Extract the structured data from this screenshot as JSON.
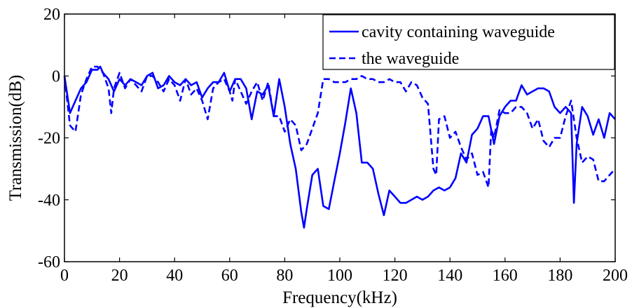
{
  "chart_data": {
    "type": "line",
    "title": "",
    "xlabel": "Frequency(kHz)",
    "ylabel": "Transmission(dB)",
    "xlim": [
      0,
      200
    ],
    "ylim": [
      -60,
      20
    ],
    "xticks": [
      0,
      20,
      40,
      60,
      80,
      100,
      120,
      140,
      160,
      180,
      200
    ],
    "yticks": [
      20,
      0,
      -20,
      -40,
      -60
    ],
    "xtick_labels": [
      "0",
      "20",
      "40",
      "60",
      "80",
      "100",
      "120",
      "140",
      "160",
      "180",
      "200"
    ],
    "ytick_labels": [
      "20",
      "0",
      "-20",
      "-40",
      "-60"
    ],
    "grid": false,
    "legend_position": "top-right",
    "series": [
      {
        "name": "cavity containing waveguide",
        "style": "solid",
        "color": "#0000ff",
        "x": [
          0,
          2,
          4,
          6,
          8,
          10,
          12,
          13,
          14,
          16,
          18,
          20,
          22,
          24,
          26,
          28,
          30,
          32,
          34,
          36,
          38,
          40,
          42,
          44,
          46,
          48,
          50,
          52,
          54,
          56,
          58,
          60,
          62,
          64,
          66,
          68,
          70,
          72,
          74,
          76,
          78,
          80,
          82,
          84,
          86,
          87,
          88,
          90,
          92,
          94,
          96,
          98,
          100,
          102,
          104,
          106,
          108,
          110,
          112,
          114,
          116,
          118,
          120,
          122,
          124,
          126,
          128,
          130,
          132,
          134,
          136,
          138,
          140,
          142,
          144,
          146,
          148,
          150,
          152,
          154,
          156,
          158,
          160,
          162,
          164,
          166,
          168,
          170,
          172,
          174,
          176,
          178,
          180,
          182,
          184,
          185,
          186,
          188,
          190,
          192,
          194,
          196,
          198,
          200
        ],
        "y": [
          0,
          -12,
          -8,
          -4,
          -2,
          2,
          2,
          3,
          1,
          -1,
          -5,
          -1,
          -3,
          -1,
          -2,
          -3,
          0,
          1,
          -4,
          -3,
          0,
          -2,
          -3,
          -1,
          -3,
          -2,
          -7,
          -4,
          -2,
          -2,
          1,
          -5,
          -1,
          -1,
          -4,
          -14,
          -5,
          -6,
          -3,
          -13,
          -1,
          -10,
          -22,
          -30,
          -44,
          -49,
          -43,
          -32,
          -30,
          -42,
          -43,
          -34,
          -25,
          -15,
          -4,
          -12,
          -28,
          -28,
          -30,
          -38,
          -45,
          -37,
          -39,
          -41,
          -41,
          -40,
          -39,
          -40,
          -39,
          -37,
          -36,
          -37,
          -36,
          -33,
          -25,
          -28,
          -19,
          -17,
          -13,
          -13,
          -22,
          -13,
          -10,
          -8,
          -8,
          -3,
          -6,
          -5,
          -4,
          -4,
          -5,
          -10,
          -12,
          -10,
          -12,
          -41,
          -22,
          -10,
          -13,
          -19,
          -14,
          -20,
          -12,
          -14
        ]
      },
      {
        "name": "the waveguide",
        "style": "dashed",
        "color": "#0000ff",
        "x": [
          0,
          2,
          4,
          6,
          8,
          10,
          12,
          14,
          16,
          17,
          18,
          20,
          22,
          24,
          26,
          28,
          30,
          32,
          34,
          36,
          38,
          40,
          42,
          44,
          46,
          48,
          50,
          52,
          54,
          56,
          58,
          60,
          61,
          62,
          64,
          66,
          68,
          70,
          72,
          74,
          76,
          78,
          80,
          82,
          84,
          86,
          88,
          90,
          92,
          94,
          96,
          98,
          100,
          102,
          104,
          106,
          108,
          110,
          112,
          114,
          116,
          118,
          120,
          122,
          124,
          126,
          128,
          130,
          132,
          134,
          135,
          136,
          138,
          140,
          142,
          144,
          146,
          148,
          150,
          152,
          154,
          155,
          156,
          158,
          160,
          162,
          164,
          166,
          168,
          170,
          172,
          174,
          176,
          178,
          180,
          182,
          184,
          186,
          188,
          190,
          192,
          194,
          196,
          198,
          200
        ],
        "y": [
          0,
          -16,
          -18,
          -6,
          -1,
          3,
          3,
          1,
          -4,
          -12,
          -4,
          1,
          -4,
          -1,
          -3,
          -5,
          0,
          0,
          -2,
          -5,
          -1,
          -3,
          -8,
          -1,
          -6,
          -4,
          -8,
          -14,
          -4,
          -2,
          -1,
          -5,
          -8,
          -1,
          -5,
          -9,
          -5,
          -2,
          -8,
          -2,
          -13,
          -13,
          -18,
          -14,
          -16,
          -24,
          -22,
          -17,
          -12,
          -1,
          -1,
          -2,
          -2,
          -2,
          -1,
          -1,
          0,
          -1,
          -1,
          -2,
          -2,
          -1,
          -2,
          -2,
          -5,
          -2,
          -3,
          -7,
          -9,
          -30,
          -32,
          -14,
          -13,
          -20,
          -18,
          -23,
          -27,
          -25,
          -32,
          -31,
          -36,
          -17,
          -20,
          -11,
          -12,
          -12,
          -10,
          -10,
          -12,
          -17,
          -14,
          -21,
          -23,
          -20,
          -20,
          -13,
          -8,
          -20,
          -28,
          -26,
          -27,
          -34,
          -34,
          -32,
          -30
        ]
      }
    ]
  }
}
